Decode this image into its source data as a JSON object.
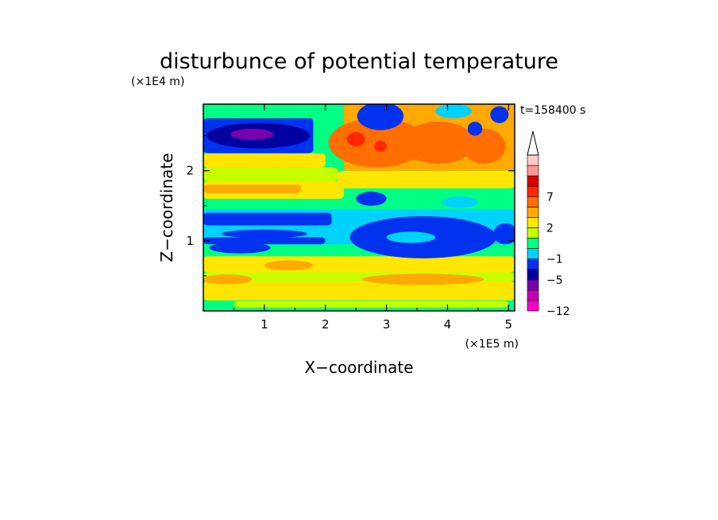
{
  "chart_data": {
    "type": "heatmap",
    "title": "disturbunce of potential temperature",
    "time_label": "t=158400 s",
    "xlabel": "X−coordinate",
    "ylabel": "Z−coordinate",
    "x_unit": "(×1E5 m)",
    "y_unit": "(×1E4 m)",
    "xlim": [
      0,
      5.1
    ],
    "ylim": [
      0,
      2.95
    ],
    "x_ticks": [
      {
        "value": 1,
        "label": "1"
      },
      {
        "value": 2,
        "label": "2"
      },
      {
        "value": 3,
        "label": "3"
      },
      {
        "value": 4,
        "label": "4"
      },
      {
        "value": 5,
        "label": "5"
      }
    ],
    "y_ticks": [
      {
        "value": 1,
        "label": "1"
      },
      {
        "value": 2,
        "label": "2"
      }
    ],
    "colorbar": {
      "levels": [
        -12,
        -9,
        -7,
        -5,
        -3,
        -1,
        0,
        1,
        2,
        3,
        5,
        7,
        9,
        11
      ],
      "colors": [
        "#ff00c8",
        "#c800b4",
        "#7800aa",
        "#0000a0",
        "#0032f0",
        "#00d2ff",
        "#00ff82",
        "#c8ff00",
        "#ffe600",
        "#ffaa00",
        "#ff6e00",
        "#ff2800",
        "#dc0000",
        "#ff9696",
        "#ffcaca"
      ],
      "tick_labels": [
        {
          "value": -12,
          "label": "−12"
        },
        {
          "value": -5,
          "label": "−5"
        },
        {
          "value": -1,
          "label": "−1"
        },
        {
          "value": 2,
          "label": "2"
        },
        {
          "value": 7,
          "label": "7"
        }
      ],
      "extend": "max"
    },
    "background_level": "green",
    "bands": [
      {
        "x": [
          0,
          5.1
        ],
        "z": [
          0,
          0.15
        ],
        "c": "#00ff82"
      },
      {
        "x": [
          0.5,
          5.0
        ],
        "z": [
          0.05,
          0.14
        ],
        "c": "#c8ff00"
      },
      {
        "x": [
          0,
          5.1
        ],
        "z": [
          0.15,
          0.42
        ],
        "c": "#ffe600"
      },
      {
        "x": [
          0,
          5.1
        ],
        "z": [
          0.42,
          0.55
        ],
        "c": "#c8ff00"
      },
      {
        "x": [
          0,
          5.1
        ],
        "z": [
          0.55,
          0.78
        ],
        "c": "#ffe600"
      },
      {
        "x": [
          0,
          5.1
        ],
        "z": [
          0.78,
          0.95
        ],
        "c": "#00ff82"
      },
      {
        "x": [
          0,
          5.1
        ],
        "z": [
          0.95,
          1.45
        ],
        "c": "#00d2ff"
      },
      {
        "x": [
          0,
          2.0
        ],
        "z": [
          0.95,
          1.05
        ],
        "c": "#0032f0"
      },
      {
        "x": [
          0,
          2.1
        ],
        "z": [
          1.22,
          1.4
        ],
        "c": "#0032f0"
      },
      {
        "x": [
          0,
          2.4
        ],
        "z": [
          1.45,
          1.6
        ],
        "c": "#00ff82"
      },
      {
        "x": [
          0,
          2.3
        ],
        "z": [
          1.6,
          1.85
        ],
        "c": "#ffe600"
      },
      {
        "x": [
          0,
          1.6
        ],
        "z": [
          1.68,
          1.8
        ],
        "c": "#ffaa00"
      },
      {
        "x": [
          0,
          2.2
        ],
        "z": [
          1.85,
          2.05
        ],
        "c": "#c8ff00"
      },
      {
        "x": [
          0,
          2.0
        ],
        "z": [
          2.05,
          2.25
        ],
        "c": "#ffe600"
      },
      {
        "x": [
          0,
          1.8
        ],
        "z": [
          2.25,
          2.75
        ],
        "c": "#0032f0"
      },
      {
        "x": [
          0,
          1.8
        ],
        "z": [
          2.75,
          2.95
        ],
        "c": "#00ff82"
      },
      {
        "x": [
          2.4,
          5.1
        ],
        "z": [
          1.45,
          1.75
        ],
        "c": "#00ff82"
      },
      {
        "x": [
          2.2,
          5.1
        ],
        "z": [
          1.75,
          2.0
        ],
        "c": "#ffe600"
      },
      {
        "x": [
          2.3,
          5.1
        ],
        "z": [
          2.0,
          2.95
        ],
        "c": "#ffaa00"
      }
    ],
    "blobs": [
      {
        "cx": 3.6,
        "cz": 1.05,
        "rx": 1.2,
        "rz": 0.3,
        "c": "#0032f0"
      },
      {
        "cx": 3.4,
        "cz": 1.05,
        "rx": 0.4,
        "rz": 0.08,
        "c": "#00d2ff"
      },
      {
        "cx": 4.95,
        "cz": 1.1,
        "rx": 0.2,
        "rz": 0.15,
        "c": "#0032f0"
      },
      {
        "cx": 0.9,
        "cz": 2.5,
        "rx": 0.85,
        "rz": 0.18,
        "c": "#0000a0"
      },
      {
        "cx": 0.8,
        "cz": 2.52,
        "rx": 0.35,
        "rz": 0.08,
        "c": "#7800aa"
      },
      {
        "cx": 2.85,
        "cz": 2.4,
        "rx": 0.8,
        "rz": 0.35,
        "c": "#ff6e00"
      },
      {
        "cx": 2.5,
        "cz": 2.45,
        "rx": 0.15,
        "rz": 0.1,
        "c": "#ff2800"
      },
      {
        "cx": 2.9,
        "cz": 2.35,
        "rx": 0.1,
        "rz": 0.08,
        "c": "#ff2800"
      },
      {
        "cx": 3.85,
        "cz": 2.4,
        "rx": 0.6,
        "rz": 0.3,
        "c": "#ff6e00"
      },
      {
        "cx": 4.6,
        "cz": 2.35,
        "rx": 0.35,
        "rz": 0.25,
        "c": "#ff6e00"
      },
      {
        "cx": 2.9,
        "cz": 2.78,
        "rx": 0.28,
        "rz": 0.15,
        "c": "#0000a0"
      },
      {
        "cx": 2.9,
        "cz": 2.78,
        "rx": 0.38,
        "rz": 0.2,
        "c": "#0032f0"
      },
      {
        "cx": 4.1,
        "cz": 2.85,
        "rx": 0.3,
        "rz": 0.1,
        "c": "#00d2ff"
      },
      {
        "cx": 4.45,
        "cz": 2.6,
        "rx": 0.12,
        "rz": 0.1,
        "c": "#0032f0"
      },
      {
        "cx": 4.85,
        "cz": 2.8,
        "rx": 0.15,
        "rz": 0.12,
        "c": "#0032f0"
      },
      {
        "cx": 2.75,
        "cz": 1.6,
        "rx": 0.25,
        "rz": 0.1,
        "c": "#0032f0"
      },
      {
        "cx": 0.6,
        "cz": 0.9,
        "rx": 0.5,
        "rz": 0.08,
        "c": "#0032f0"
      },
      {
        "cx": 3.6,
        "cz": 0.45,
        "rx": 1.0,
        "rz": 0.08,
        "c": "#ffaa00"
      },
      {
        "cx": 0.4,
        "cz": 0.45,
        "rx": 0.4,
        "rz": 0.07,
        "c": "#ffaa00"
      },
      {
        "cx": 1.0,
        "cz": 1.1,
        "rx": 0.7,
        "rz": 0.06,
        "c": "#0032f0"
      },
      {
        "cx": 4.2,
        "cz": 1.55,
        "rx": 0.3,
        "rz": 0.08,
        "c": "#00d2ff"
      },
      {
        "cx": 1.4,
        "cz": 0.65,
        "rx": 0.4,
        "rz": 0.07,
        "c": "#ffaa00"
      }
    ]
  }
}
